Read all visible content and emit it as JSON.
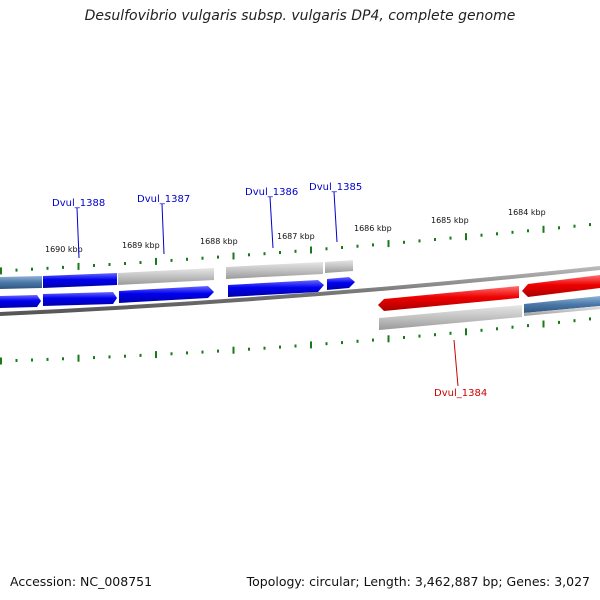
{
  "title": "Desulfovibrio vulgaris subsp. vulgaris DP4, complete genome",
  "accession": "Accession: NC_008751",
  "topology": "Topology: circular; Length: 3,462,887 bp; Genes: 3,027",
  "kbp_labels": [
    "1690 kbp",
    "1689 kbp",
    "1688 kbp",
    "1687 kbp",
    "1686 kbp",
    "1685 kbp",
    "1684 kbp"
  ],
  "genes": [
    {
      "name": "Dvul_1388",
      "color": "#0000cc"
    },
    {
      "name": "Dvul_1387",
      "color": "#0000cc"
    },
    {
      "name": "Dvul_1386",
      "color": "#0000cc"
    },
    {
      "name": "Dvul_1385",
      "color": "#0000cc"
    },
    {
      "name": "Dvul_1384",
      "color": "#cc0000"
    }
  ],
  "colors": {
    "forward_gene": "#0000ee",
    "reverse_gene": "#ee0000",
    "tick": "#1a7a1a",
    "backbone": "#7a7a7a",
    "gray_segment": "#bdbdbd",
    "steel_segment": "#4a78a8"
  }
}
